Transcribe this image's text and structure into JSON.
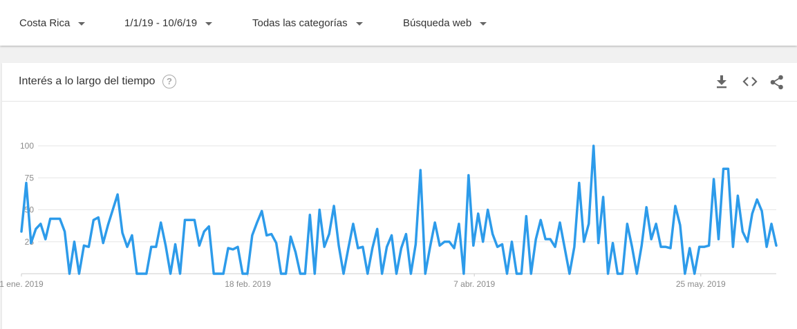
{
  "filters": {
    "region": "Costa Rica",
    "date_range": "1/1/19 - 10/6/19",
    "category": "Todas las categorías",
    "search_type": "Búsqueda web"
  },
  "card": {
    "title": "Interés a lo largo del tiempo",
    "help_glyph": "?"
  },
  "icons": [
    "download-icon",
    "embed-code-icon",
    "share-icon"
  ],
  "colors": {
    "series": "#2d9bea",
    "grid": "#e6e6e6",
    "axis_text": "#8a8a8a"
  },
  "chart_data": {
    "type": "line",
    "title": "",
    "xlabel": "",
    "ylabel": "",
    "ylim": [
      0,
      100
    ],
    "yticks": [
      25,
      50,
      75,
      100
    ],
    "grid": true,
    "x_start": "2019-01-01",
    "x_end": "2019-06-10",
    "xtick_labels": [
      {
        "date": "2019-01-01",
        "label": "1 ene. 2019"
      },
      {
        "date": "2019-02-18",
        "label": "18 feb. 2019"
      },
      {
        "date": "2019-04-07",
        "label": "7 abr. 2019"
      },
      {
        "date": "2019-05-25",
        "label": "25 may. 2019"
      }
    ],
    "series": [
      {
        "values": [
          33,
          71,
          24,
          35,
          39,
          27,
          43,
          43,
          43,
          33,
          0,
          25,
          0,
          22,
          21,
          42,
          44,
          24,
          38,
          50,
          62,
          32,
          21,
          30,
          0,
          0,
          0,
          21,
          21,
          40,
          22,
          0,
          23,
          0,
          42,
          42,
          42,
          22,
          33,
          37,
          0,
          0,
          0,
          20,
          19,
          21,
          0,
          0,
          30,
          40,
          49,
          30,
          31,
          24,
          0,
          0,
          29,
          17,
          0,
          0,
          46,
          0,
          50,
          21,
          31,
          53,
          22,
          0,
          20,
          39,
          20,
          21,
          0,
          20,
          35,
          0,
          21,
          30,
          0,
          20,
          31,
          0,
          23,
          81,
          0,
          21,
          40,
          22,
          25,
          25,
          20,
          39,
          0,
          77,
          22,
          47,
          25,
          50,
          31,
          21,
          23,
          0,
          25,
          0,
          0,
          45,
          0,
          27,
          42,
          27,
          27,
          21,
          40,
          20,
          0,
          21,
          71,
          25,
          39,
          100,
          24,
          60,
          0,
          24,
          0,
          0,
          39,
          21,
          0,
          22,
          52,
          27,
          39,
          21,
          21,
          20,
          53,
          38,
          0,
          20,
          0,
          21,
          21,
          22,
          74,
          27,
          82,
          82,
          21,
          61,
          33,
          25,
          47,
          58,
          49,
          21,
          39,
          22
        ]
      }
    ]
  }
}
